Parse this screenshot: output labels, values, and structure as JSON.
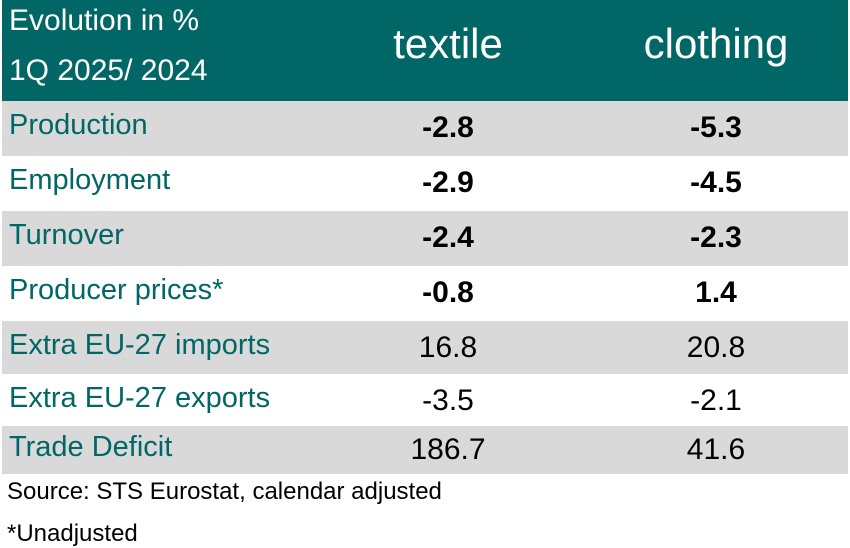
{
  "header": {
    "title_line1": "Evolution in %",
    "title_line2": "1Q 2025/ 2024",
    "col1": "textile",
    "col2": "clothing"
  },
  "rows": [
    {
      "label": "Production",
      "textile": "-2.8",
      "clothing": "-5.3"
    },
    {
      "label": "Employment",
      "textile": "-2.9",
      "clothing": "-4.5"
    },
    {
      "label": "Turnover",
      "textile": "-2.4",
      "clothing": "-2.3"
    },
    {
      "label": "Producer prices*",
      "textile": "-0.8",
      "clothing": "1.4"
    },
    {
      "label": "Extra EU-27 imports",
      "textile": "16.8",
      "clothing": "20.8"
    },
    {
      "label": "Extra EU-27 exports",
      "textile": "-3.5",
      "clothing": "-2.1"
    },
    {
      "label": "Trade Deficit",
      "textile": "186.7",
      "clothing": "41.6"
    }
  ],
  "footnotes": {
    "source": "Source: STS Eurostat, calendar adjusted",
    "unadjusted": "*Unadjusted"
  },
  "colors": {
    "header_bg": "#006666",
    "label_text": "#006666",
    "shaded_row": "#d9d9d9"
  }
}
